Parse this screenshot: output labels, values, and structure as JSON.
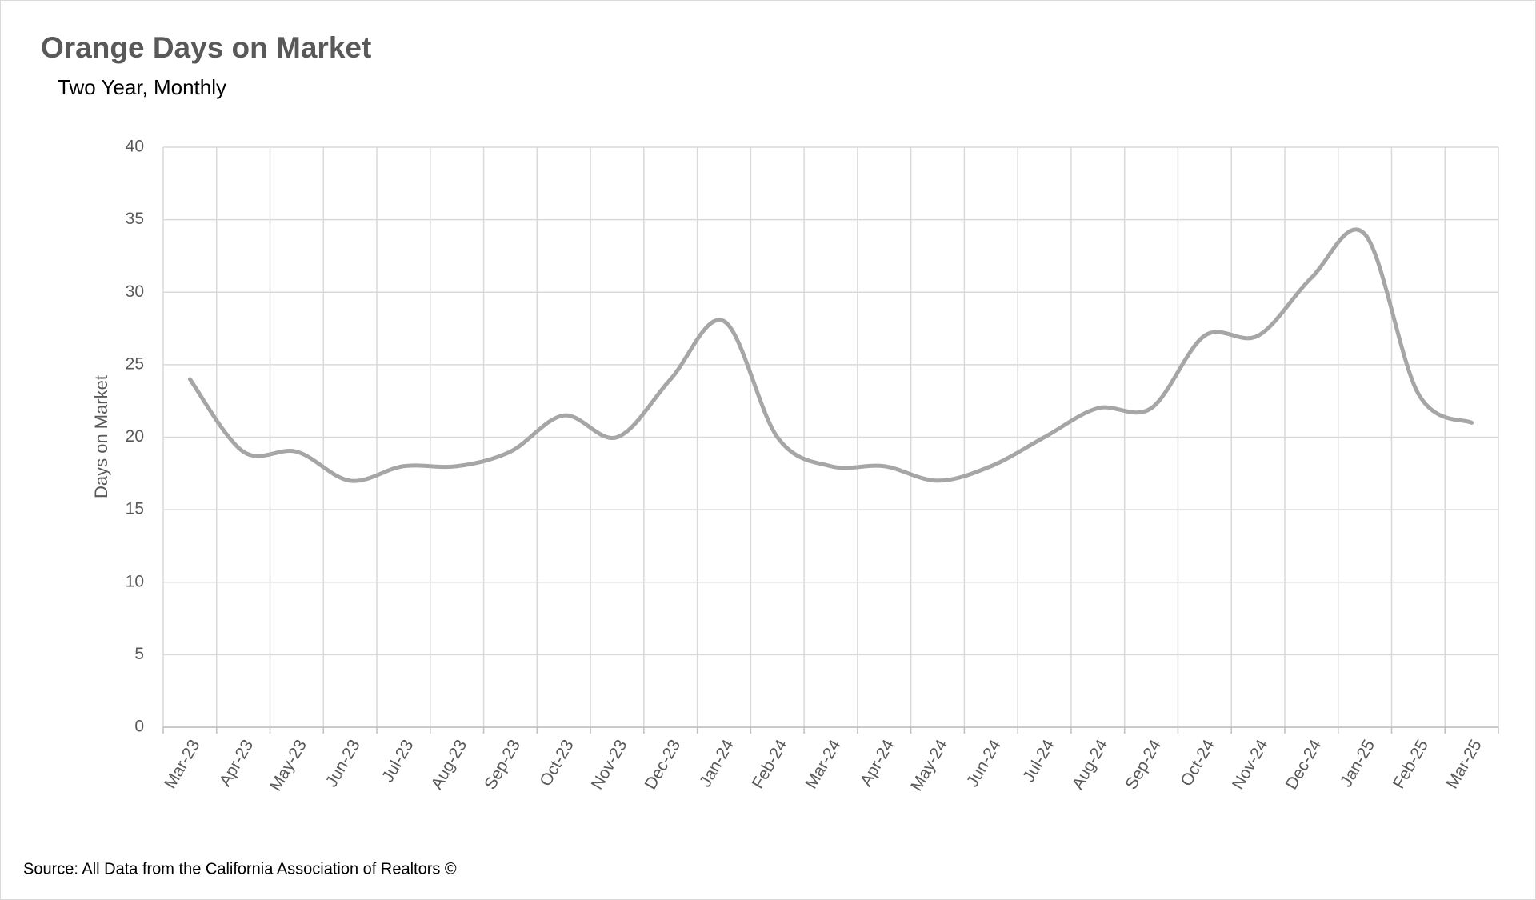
{
  "chart_data": {
    "type": "line",
    "title": "Orange Days on Market",
    "subtitle": "Two Year, Monthly",
    "y_label": "Days on Market",
    "source": "Source: All Data from the California Association of Realtors ©",
    "categories": [
      "Mar-23",
      "Apr-23",
      "May-23",
      "Jun-23",
      "Jul-23",
      "Aug-23",
      "Sep-23",
      "Oct-23",
      "Nov-23",
      "Dec-23",
      "Jan-24",
      "Feb-24",
      "Mar-24",
      "Apr-24",
      "May-24",
      "Jun-24",
      "Jul-24",
      "Aug-24",
      "Sep-24",
      "Oct-24",
      "Nov-24",
      "Dec-24",
      "Jan-25",
      "Feb-25",
      "Mar-25"
    ],
    "series": [
      {
        "name": "Days on Market",
        "color": "#a6a6a6",
        "values": [
          24,
          19,
          19,
          17,
          18,
          18,
          19,
          21.5,
          20,
          24,
          28,
          20,
          18,
          18,
          17,
          18,
          20,
          22,
          22,
          27,
          27,
          31,
          34,
          23,
          21
        ]
      }
    ],
    "ylim": [
      0,
      40
    ],
    "yticks": [
      0,
      5,
      10,
      15,
      20,
      25,
      30,
      35,
      40
    ],
    "grid": true,
    "smooth": true
  }
}
